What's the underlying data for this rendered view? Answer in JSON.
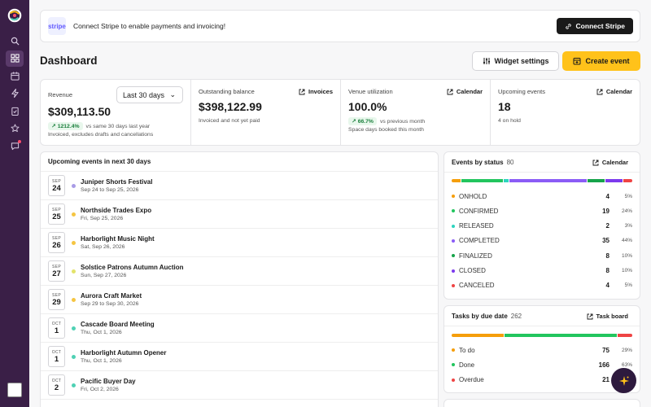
{
  "stripe": {
    "logo_text": "stripe",
    "message": "Connect Stripe to enable payments and invoicing!",
    "button": "Connect Stripe"
  },
  "header": {
    "title": "Dashboard",
    "widget_settings": "Widget settings",
    "create_event": "Create event"
  },
  "stats": {
    "revenue": {
      "label": "Revenue",
      "range": "Last 30 days",
      "value": "$309,113.50",
      "trend": "1212.4%",
      "trend_note": "vs same 30 days last year",
      "sub": "Invoiced, excludes drafts and cancellations"
    },
    "outstanding": {
      "label": "Outstanding balance",
      "link": "Invoices",
      "value": "$398,122.99",
      "sub": "Invoiced and not yet paid"
    },
    "utilization": {
      "label": "Venue utilization",
      "link": "Calendar",
      "value": "100.0%",
      "trend": "66.7%",
      "trend_note": "vs previous month",
      "sub": "Space days booked this month"
    },
    "upcoming": {
      "label": "Upcoming events",
      "link": "Calendar",
      "value": "18",
      "sub": "4 on hold"
    }
  },
  "upcoming_list": {
    "title": "Upcoming events in next 30 days",
    "events": [
      {
        "mon": "SEP",
        "day": "24",
        "name": "Juniper Shorts Festival",
        "date": "Sep 24 to Sep 25, 2026",
        "color": "#a99be6"
      },
      {
        "mon": "SEP",
        "day": "25",
        "name": "Northside Trades Expo",
        "date": "Fri, Sep 25, 2026",
        "color": "#f5c542"
      },
      {
        "mon": "SEP",
        "day": "26",
        "name": "Harborlight Music Night",
        "date": "Sat, Sep 26, 2026",
        "color": "#f5c542"
      },
      {
        "mon": "SEP",
        "day": "27",
        "name": "Solstice Patrons Autumn Auction",
        "date": "Sun, Sep 27, 2026",
        "color": "#e3e36a"
      },
      {
        "mon": "SEP",
        "day": "29",
        "name": "Aurora Craft Market",
        "date": "Sep 29 to Sep 30, 2026",
        "color": "#f5c542"
      },
      {
        "mon": "OCT",
        "day": "1",
        "name": "Cascade Board Meeting",
        "date": "Thu, Oct 1, 2026",
        "color": "#4fd1b4"
      },
      {
        "mon": "OCT",
        "day": "1",
        "name": "Harborlight Autumn Opener",
        "date": "Thu, Oct 1, 2026",
        "color": "#4fd1b4"
      },
      {
        "mon": "OCT",
        "day": "2",
        "name": "Pacific Buyer Day",
        "date": "Fri, Oct 2, 2026",
        "color": "#4fd1b4"
      }
    ]
  },
  "events_by_status": {
    "title": "Events by status",
    "count": "80",
    "link": "Calendar",
    "rows": [
      {
        "label": "ONHOLD",
        "num": "4",
        "pct": "5%",
        "value": 5,
        "color": "#f59e0b"
      },
      {
        "label": "CONFIRMED",
        "num": "19",
        "pct": "24%",
        "value": 24,
        "color": "#22c55e"
      },
      {
        "label": "RELEASED",
        "num": "2",
        "pct": "3%",
        "value": 3,
        "color": "#2dd4bf"
      },
      {
        "label": "COMPLETED",
        "num": "35",
        "pct": "44%",
        "value": 44,
        "color": "#8b5cf6"
      },
      {
        "label": "FINALIZED",
        "num": "8",
        "pct": "10%",
        "value": 10,
        "color": "#16a34a"
      },
      {
        "label": "CLOSED",
        "num": "8",
        "pct": "10%",
        "value": 10,
        "color": "#7c3aed"
      },
      {
        "label": "CANCELED",
        "num": "4",
        "pct": "5%",
        "value": 5,
        "color": "#ef4444"
      }
    ]
  },
  "tasks_by_due": {
    "title": "Tasks by due date",
    "count": "262",
    "link": "Task board",
    "rows": [
      {
        "label": "To do",
        "num": "75",
        "pct": "29%",
        "value": 29,
        "color": "#f59e0b"
      },
      {
        "label": "Done",
        "num": "166",
        "pct": "63%",
        "value": 63,
        "color": "#22c55e"
      },
      {
        "label": "Overdue",
        "num": "21",
        "pct": "",
        "value": 8,
        "color": "#ef4444"
      }
    ]
  },
  "icons": {
    "logo": "brand-logo-icon",
    "nav": [
      "search-icon",
      "grid-icon",
      "calendar-icon",
      "lightning-icon",
      "clipboard-icon",
      "star-icon",
      "chat-icon"
    ],
    "fab": "sparkle-icon"
  }
}
